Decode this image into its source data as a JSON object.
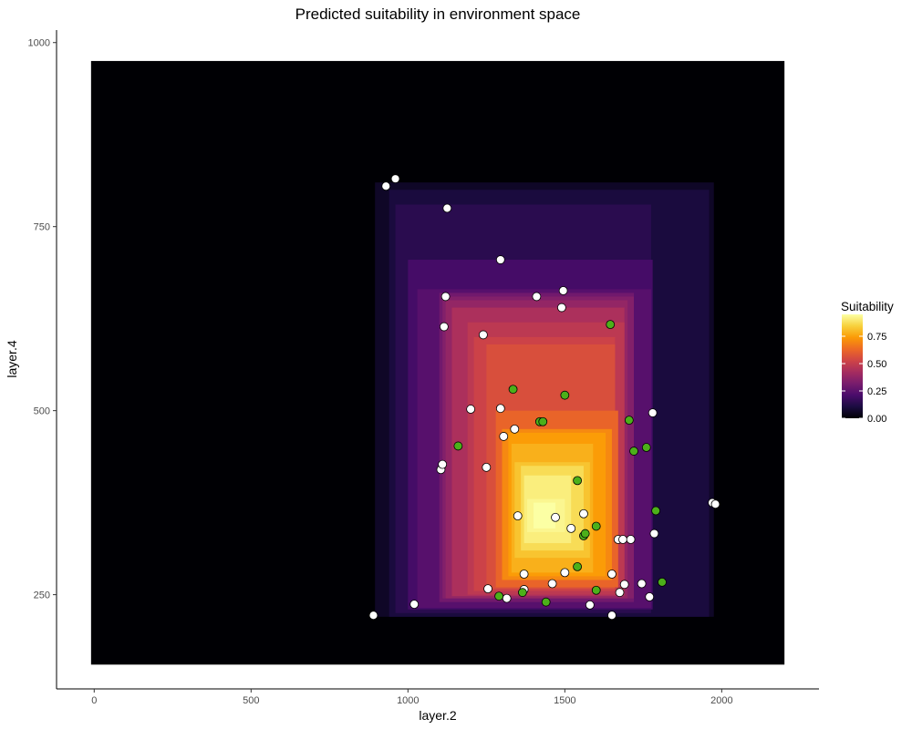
{
  "chart_data": {
    "type": "heatmap",
    "title": "Predicted suitability in environment space",
    "xlabel": "layer.2",
    "ylabel": "layer.4",
    "xlim": [
      -120,
      2310
    ],
    "ylim": [
      122,
      1017
    ],
    "x_ticks": [
      0,
      500,
      1000,
      1500,
      2000
    ],
    "y_ticks": [
      250,
      500,
      750,
      1000
    ],
    "grid": false,
    "legend": {
      "title": "Suitability",
      "placement": "right",
      "ticks": [
        0.0,
        0.25,
        0.5,
        0.75
      ],
      "tick_labels": [
        "0.00",
        "0.25",
        "0.50",
        "0.75"
      ],
      "range": [
        0,
        0.95
      ],
      "colors": [
        "#000004",
        "#1b0c41",
        "#4a0c6b",
        "#781c6d",
        "#a52c60",
        "#cf4446",
        "#ed6925",
        "#fb9b06",
        "#f7d13d",
        "#fcffa4"
      ]
    },
    "suitability_regions": [
      {
        "x": [
          -10,
          2200
        ],
        "y": [
          155,
          975
        ],
        "value": 0.0
      },
      {
        "x": [
          895,
          1975
        ],
        "y": [
          220,
          810
        ],
        "value": 0.06
      },
      {
        "x": [
          940,
          1960
        ],
        "y": [
          220,
          800
        ],
        "value": 0.1
      },
      {
        "x": [
          960,
          1775
        ],
        "y": [
          225,
          780
        ],
        "value": 0.14
      },
      {
        "x": [
          1000,
          1780
        ],
        "y": [
          230,
          705
        ],
        "value": 0.2
      },
      {
        "x": [
          1030,
          1775
        ],
        "y": [
          232,
          665
        ],
        "value": 0.24
      },
      {
        "x": [
          1100,
          1720
        ],
        "y": [
          240,
          660
        ],
        "value": 0.3
      },
      {
        "x": [
          1110,
          1720
        ],
        "y": [
          245,
          655
        ],
        "value": 0.34
      },
      {
        "x": [
          1120,
          1700
        ],
        "y": [
          245,
          650
        ],
        "value": 0.38
      },
      {
        "x": [
          1140,
          1690
        ],
        "y": [
          248,
          640
        ],
        "value": 0.44
      },
      {
        "x": [
          1190,
          1690
        ],
        "y": [
          250,
          620
        ],
        "value": 0.48
      },
      {
        "x": [
          1210,
          1660
        ],
        "y": [
          255,
          600
        ],
        "value": 0.52
      },
      {
        "x": [
          1250,
          1660
        ],
        "y": [
          258,
          590
        ],
        "value": 0.56
      },
      {
        "x": [
          1280,
          1670
        ],
        "y": [
          260,
          500
        ],
        "value": 0.62
      },
      {
        "x": [
          1300,
          1650
        ],
        "y": [
          270,
          475
        ],
        "value": 0.7
      },
      {
        "x": [
          1320,
          1630
        ],
        "y": [
          275,
          470
        ],
        "value": 0.74
      },
      {
        "x": [
          1330,
          1590
        ],
        "y": [
          280,
          455
        ],
        "value": 0.78
      },
      {
        "x": [
          1340,
          1580
        ],
        "y": [
          300,
          430
        ],
        "value": 0.82
      },
      {
        "x": [
          1360,
          1560
        ],
        "y": [
          310,
          425
        ],
        "value": 0.87
      },
      {
        "x": [
          1370,
          1520
        ],
        "y": [
          320,
          412
        ],
        "value": 0.91
      },
      {
        "x": [
          1380,
          1500
        ],
        "y": [
          335,
          380
        ],
        "value": 0.93
      },
      {
        "x": [
          1400,
          1470
        ],
        "y": [
          340,
          375
        ],
        "value": 0.95
      }
    ],
    "series": [
      {
        "marker": "white",
        "points": [
          [
            890,
            222
          ],
          [
            930,
            805
          ],
          [
            960,
            815
          ],
          [
            1020,
            237
          ],
          [
            1105,
            420
          ],
          [
            1110,
            427
          ],
          [
            1115,
            614
          ],
          [
            1120,
            655
          ],
          [
            1125,
            775
          ],
          [
            1200,
            502
          ],
          [
            1240,
            603
          ],
          [
            1250,
            423
          ],
          [
            1255,
            258
          ],
          [
            1295,
            705
          ],
          [
            1295,
            503
          ],
          [
            1305,
            465
          ],
          [
            1315,
            245
          ],
          [
            1340,
            475
          ],
          [
            1350,
            357
          ],
          [
            1370,
            278
          ],
          [
            1370,
            257
          ],
          [
            1410,
            655
          ],
          [
            1460,
            265
          ],
          [
            1470,
            355
          ],
          [
            1490,
            640
          ],
          [
            1495,
            663
          ],
          [
            1500,
            280
          ],
          [
            1520,
            340
          ],
          [
            1560,
            360
          ],
          [
            1580,
            236
          ],
          [
            1650,
            222
          ],
          [
            1650,
            278
          ],
          [
            1670,
            325
          ],
          [
            1675,
            253
          ],
          [
            1685,
            325
          ],
          [
            1690,
            264
          ],
          [
            1710,
            325
          ],
          [
            1745,
            265
          ],
          [
            1770,
            247
          ],
          [
            1780,
            497
          ],
          [
            1785,
            333
          ],
          [
            1970,
            375
          ],
          [
            1980,
            373
          ]
        ]
      },
      {
        "marker": "green",
        "points": [
          [
            1160,
            452
          ],
          [
            1290,
            248
          ],
          [
            1335,
            529
          ],
          [
            1365,
            253
          ],
          [
            1420,
            485
          ],
          [
            1430,
            485
          ],
          [
            1440,
            240
          ],
          [
            1500,
            521
          ],
          [
            1540,
            405
          ],
          [
            1540,
            288
          ],
          [
            1560,
            330
          ],
          [
            1565,
            333
          ],
          [
            1600,
            256
          ],
          [
            1600,
            343
          ],
          [
            1645,
            617
          ],
          [
            1705,
            487
          ],
          [
            1720,
            445
          ],
          [
            1760,
            450
          ],
          [
            1790,
            364
          ],
          [
            1810,
            267
          ]
        ]
      }
    ]
  }
}
